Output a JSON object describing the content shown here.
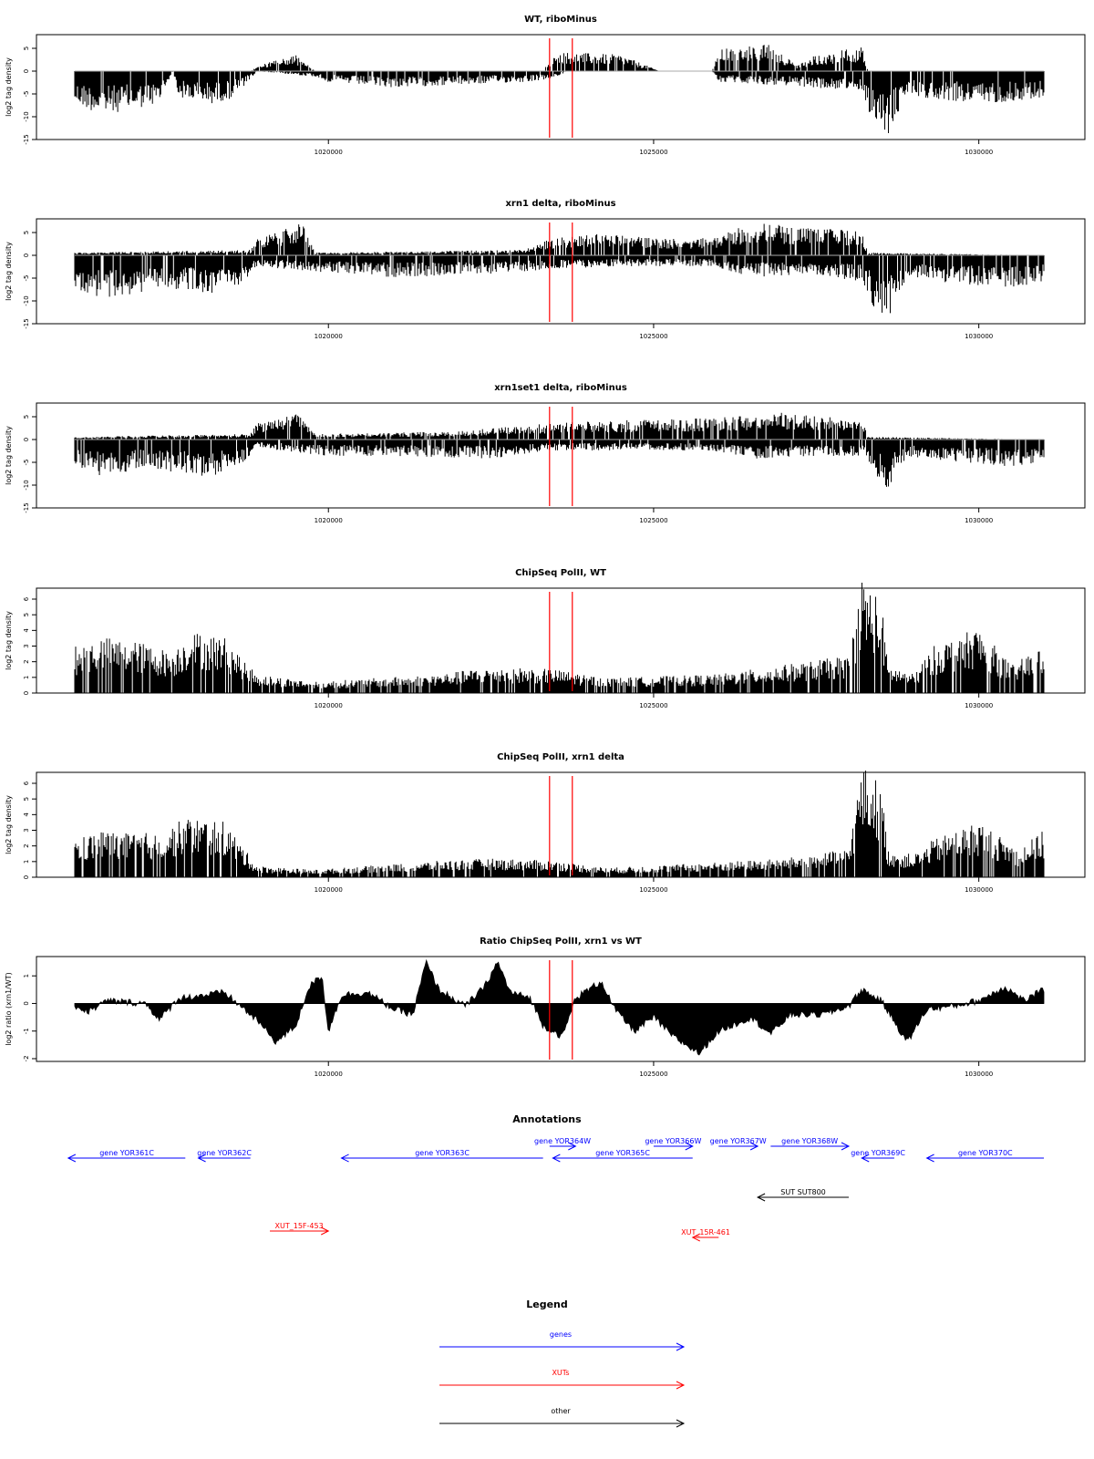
{
  "chart_data": [
    {
      "type": "bar",
      "title": "WT, riboMinus",
      "xlabel": "",
      "ylabel": "log2 tag density",
      "xlim": [
        1016000,
        1031500
      ],
      "ylim": [
        -15,
        8
      ],
      "yticks": [
        -15,
        -10,
        -5,
        0,
        5
      ],
      "xticks": [
        1020000,
        1025000,
        1030000
      ],
      "xticklabels": [
        "1020000",
        "1025000",
        "1030000"
      ],
      "marker_lines_x": [
        1023400,
        1023750
      ],
      "marker_color": "#ff0000",
      "positive_profile": [
        [
          1016100,
          0
        ],
        [
          1018800,
          0
        ],
        [
          1018900,
          1
        ],
        [
          1019500,
          3
        ],
        [
          1019800,
          0
        ],
        [
          1023300,
          0
        ],
        [
          1023400,
          2
        ],
        [
          1023600,
          3.5
        ],
        [
          1024500,
          3
        ],
        [
          1025100,
          0
        ],
        [
          1025900,
          0
        ],
        [
          1026000,
          4
        ],
        [
          1026800,
          5
        ],
        [
          1027200,
          1
        ],
        [
          1027500,
          3
        ],
        [
          1028200,
          4.5
        ],
        [
          1028300,
          0
        ],
        [
          1031000,
          0
        ]
      ],
      "negative_profile": [
        [
          1016100,
          -6
        ],
        [
          1016500,
          -8
        ],
        [
          1017000,
          -7
        ],
        [
          1017400,
          -6
        ],
        [
          1017600,
          0
        ],
        [
          1017700,
          -5
        ],
        [
          1018200,
          -6
        ],
        [
          1018500,
          -5
        ],
        [
          1018700,
          -3
        ],
        [
          1018900,
          0
        ],
        [
          1019800,
          -1
        ],
        [
          1020000,
          -2
        ],
        [
          1021000,
          -3
        ],
        [
          1022000,
          -2.5
        ],
        [
          1023000,
          -2
        ],
        [
          1023400,
          -1.5
        ],
        [
          1023700,
          0
        ],
        [
          1025900,
          0
        ],
        [
          1026000,
          -2
        ],
        [
          1027500,
          -3
        ],
        [
          1028200,
          -4
        ],
        [
          1028300,
          -8
        ],
        [
          1028600,
          -12
        ],
        [
          1028900,
          -4
        ],
        [
          1029200,
          -5
        ],
        [
          1030000,
          -6
        ],
        [
          1031000,
          -5
        ]
      ]
    },
    {
      "type": "bar",
      "title": "xrn1 delta, riboMinus",
      "xlabel": "",
      "ylabel": "log2 tag density",
      "xlim": [
        1016000,
        1031500
      ],
      "ylim": [
        -15,
        8
      ],
      "yticks": [
        -15,
        -10,
        -5,
        0,
        5
      ],
      "xticks": [
        1020000,
        1025000,
        1030000
      ],
      "xticklabels": [
        "1020000",
        "1025000",
        "1030000"
      ],
      "marker_lines_x": [
        1023400,
        1023750
      ],
      "marker_color": "#ff0000",
      "positive_profile": [
        [
          1016100,
          0.5
        ],
        [
          1018800,
          1
        ],
        [
          1018900,
          3
        ],
        [
          1019600,
          6
        ],
        [
          1019800,
          0.5
        ],
        [
          1023000,
          1
        ],
        [
          1023400,
          3
        ],
        [
          1024000,
          4
        ],
        [
          1025500,
          3
        ],
        [
          1026000,
          3.5
        ],
        [
          1026500,
          6
        ],
        [
          1027500,
          5
        ],
        [
          1028200,
          4.5
        ],
        [
          1028300,
          0.5
        ],
        [
          1031000,
          0
        ]
      ],
      "negative_profile": [
        [
          1016100,
          -6
        ],
        [
          1016500,
          -8
        ],
        [
          1017000,
          -7
        ],
        [
          1017500,
          -6
        ],
        [
          1018200,
          -7
        ],
        [
          1018700,
          -5
        ],
        [
          1018900,
          -2
        ],
        [
          1019800,
          -3
        ],
        [
          1021000,
          -4
        ],
        [
          1022500,
          -3.5
        ],
        [
          1023400,
          -2.5
        ],
        [
          1024500,
          -2
        ],
        [
          1025900,
          -2
        ],
        [
          1026500,
          -4
        ],
        [
          1027500,
          -3.5
        ],
        [
          1028200,
          -5
        ],
        [
          1028400,
          -10
        ],
        [
          1028600,
          -12
        ],
        [
          1028900,
          -4
        ],
        [
          1029500,
          -5
        ],
        [
          1030500,
          -6
        ],
        [
          1031000,
          -5
        ]
      ]
    },
    {
      "type": "bar",
      "title": "xrn1set1 delta, riboMinus",
      "xlabel": "",
      "ylabel": "log2 tag density",
      "xlim": [
        1016000,
        1031500
      ],
      "ylim": [
        -15,
        8
      ],
      "yticks": [
        -15,
        -10,
        -5,
        0,
        5
      ],
      "xticks": [
        1020000,
        1025000,
        1030000
      ],
      "xticklabels": [
        "1020000",
        "1025000",
        "1030000"
      ],
      "marker_lines_x": [
        1023400,
        1023750
      ],
      "marker_color": "#ff0000",
      "positive_profile": [
        [
          1016100,
          0.5
        ],
        [
          1018800,
          1
        ],
        [
          1018900,
          3
        ],
        [
          1019500,
          5
        ],
        [
          1019800,
          1
        ],
        [
          1022000,
          1.5
        ],
        [
          1023400,
          3
        ],
        [
          1024500,
          3.5
        ],
        [
          1026000,
          4
        ],
        [
          1026800,
          5
        ],
        [
          1028200,
          4
        ],
        [
          1028300,
          0.5
        ],
        [
          1031000,
          0
        ]
      ],
      "negative_profile": [
        [
          1016100,
          -5
        ],
        [
          1016600,
          -7
        ],
        [
          1017200,
          -5
        ],
        [
          1017600,
          -6
        ],
        [
          1018200,
          -7
        ],
        [
          1018700,
          -4
        ],
        [
          1018900,
          -1.5
        ],
        [
          1020000,
          -3
        ],
        [
          1021000,
          -3
        ],
        [
          1022500,
          -3.5
        ],
        [
          1023400,
          -2
        ],
        [
          1024500,
          -2
        ],
        [
          1025900,
          -2
        ],
        [
          1026500,
          -3.5
        ],
        [
          1027500,
          -3
        ],
        [
          1028200,
          -3
        ],
        [
          1028400,
          -7
        ],
        [
          1028600,
          -9
        ],
        [
          1028900,
          -3
        ],
        [
          1029500,
          -4
        ],
        [
          1030500,
          -5
        ],
        [
          1031000,
          -4
        ]
      ]
    },
    {
      "type": "bar",
      "title": "ChipSeq PolII, WT",
      "xlabel": "",
      "ylabel": "log2 tag density",
      "xlim": [
        1016000,
        1031500
      ],
      "ylim": [
        0,
        6.7
      ],
      "yticks": [
        0,
        1,
        2,
        3,
        4,
        5,
        6
      ],
      "xticks": [
        1020000,
        1025000,
        1030000
      ],
      "xticklabels": [
        "1020000",
        "1025000",
        "1030000"
      ],
      "marker_lines_x": [
        1023400,
        1023750
      ],
      "marker_color": "#ff0000",
      "positive_profile": [
        [
          1016100,
          2.5
        ],
        [
          1016500,
          3
        ],
        [
          1017000,
          2.8
        ],
        [
          1017600,
          2.2
        ],
        [
          1017900,
          3.3
        ],
        [
          1018400,
          3
        ],
        [
          1018900,
          1
        ],
        [
          1019800,
          0.6
        ],
        [
          1021700,
          1
        ],
        [
          1022500,
          1.4
        ],
        [
          1023400,
          1.3
        ],
        [
          1024300,
          0.8
        ],
        [
          1026000,
          1
        ],
        [
          1027000,
          1.5
        ],
        [
          1028000,
          2
        ],
        [
          1028200,
          6.2
        ],
        [
          1028500,
          5
        ],
        [
          1028600,
          1.5
        ],
        [
          1029000,
          1
        ],
        [
          1029300,
          2.5
        ],
        [
          1030000,
          3.5
        ],
        [
          1030500,
          1.5
        ],
        [
          1031000,
          2.5
        ]
      ],
      "negative_profile": []
    },
    {
      "type": "bar",
      "title": "ChipSeq PolII, xrn1 delta",
      "xlabel": "",
      "ylabel": "log2 tag density",
      "xlim": [
        1016000,
        1031500
      ],
      "ylim": [
        0,
        6.7
      ],
      "yticks": [
        0,
        1,
        2,
        3,
        4,
        5,
        6
      ],
      "xticks": [
        1020000,
        1025000,
        1030000
      ],
      "xticklabels": [
        "1020000",
        "1025000",
        "1030000"
      ],
      "marker_lines_x": [
        1023400,
        1023750
      ],
      "marker_color": "#ff0000",
      "positive_profile": [
        [
          1016100,
          2
        ],
        [
          1016500,
          2.5
        ],
        [
          1017000,
          2.3
        ],
        [
          1017500,
          2.5
        ],
        [
          1017800,
          3.2
        ],
        [
          1018400,
          3
        ],
        [
          1018900,
          0.6
        ],
        [
          1019800,
          0.4
        ],
        [
          1021800,
          0.9
        ],
        [
          1022500,
          1
        ],
        [
          1023400,
          0.9
        ],
        [
          1024300,
          0.5
        ],
        [
          1026000,
          0.8
        ],
        [
          1027000,
          1
        ],
        [
          1028000,
          1.5
        ],
        [
          1028200,
          6
        ],
        [
          1028500,
          5
        ],
        [
          1028600,
          1.5
        ],
        [
          1029000,
          1.2
        ],
        [
          1029300,
          2
        ],
        [
          1030000,
          3
        ],
        [
          1030600,
          1.5
        ],
        [
          1031000,
          2.5
        ]
      ],
      "negative_profile": []
    },
    {
      "type": "area",
      "title": "Ratio ChipSeq PolII, xrn1 vs WT",
      "xlabel": "",
      "ylabel": "log2 ratio (xrn1/WT)",
      "xlim": [
        1016000,
        1031500
      ],
      "ylim": [
        -2.1,
        1.7
      ],
      "yticks": [
        -2,
        -1,
        0,
        1
      ],
      "xticks": [
        1020000,
        1025000,
        1030000
      ],
      "xticklabels": [
        "1020000",
        "1025000",
        "1030000"
      ],
      "marker_lines_x": [
        1023400,
        1023750
      ],
      "marker_color": "#ff0000",
      "profile": [
        [
          1016100,
          -0.1
        ],
        [
          1016300,
          -0.3
        ],
        [
          1016600,
          0.1
        ],
        [
          1017200,
          0
        ],
        [
          1017400,
          -0.6
        ],
        [
          1017700,
          0.2
        ],
        [
          1018100,
          0.3
        ],
        [
          1018400,
          0.4
        ],
        [
          1018600,
          0
        ],
        [
          1018900,
          -0.6
        ],
        [
          1019200,
          -1.4
        ],
        [
          1019500,
          -0.8
        ],
        [
          1019700,
          0.6
        ],
        [
          1019900,
          1
        ],
        [
          1020000,
          -1
        ],
        [
          1020200,
          0.3
        ],
        [
          1020600,
          0.4
        ],
        [
          1021000,
          -0.2
        ],
        [
          1021300,
          -0.4
        ],
        [
          1021500,
          1.5
        ],
        [
          1021700,
          0.5
        ],
        [
          1022100,
          -0.1
        ],
        [
          1022400,
          0.6
        ],
        [
          1022600,
          1.5
        ],
        [
          1022800,
          0.4
        ],
        [
          1023100,
          0.2
        ],
        [
          1023300,
          -0.8
        ],
        [
          1023600,
          -1.2
        ],
        [
          1023800,
          0.2
        ],
        [
          1024200,
          0.8
        ],
        [
          1024400,
          -0.2
        ],
        [
          1024700,
          -1
        ],
        [
          1025000,
          -0.5
        ],
        [
          1025300,
          -1.2
        ],
        [
          1025700,
          -1.8
        ],
        [
          1026000,
          -1
        ],
        [
          1026500,
          -0.5
        ],
        [
          1026800,
          -1.1
        ],
        [
          1027100,
          -0.4
        ],
        [
          1027600,
          -0.4
        ],
        [
          1028000,
          -0.1
        ],
        [
          1028200,
          0.5
        ],
        [
          1028500,
          0.1
        ],
        [
          1028900,
          -1.4
        ],
        [
          1029200,
          -0.2
        ],
        [
          1029600,
          -0.1
        ],
        [
          1030000,
          0.1
        ],
        [
          1030400,
          0.6
        ],
        [
          1030700,
          0.1
        ],
        [
          1031000,
          0.5
        ]
      ]
    }
  ],
  "annotations": {
    "title": "Annotations",
    "genes": [
      {
        "label": "gene YOR361C",
        "start": 1016000,
        "end": 1017800,
        "strand": "-",
        "row": 2
      },
      {
        "label": "gene YOR362C",
        "start": 1018000,
        "end": 1018800,
        "strand": "-",
        "row": 2
      },
      {
        "label": "gene YOR363C",
        "start": 1020200,
        "end": 1023300,
        "strand": "-",
        "row": 2
      },
      {
        "label": "gene YOR364W",
        "start": 1023400,
        "end": 1023800,
        "strand": "+",
        "row": 1
      },
      {
        "label": "gene YOR365C",
        "start": 1023450,
        "end": 1025600,
        "strand": "-",
        "row": 2
      },
      {
        "label": "gene YOR366W",
        "start": 1025000,
        "end": 1025600,
        "strand": "+",
        "row": 1
      },
      {
        "label": "gene YOR367W",
        "start": 1026000,
        "end": 1026600,
        "strand": "+",
        "row": 1
      },
      {
        "label": "gene YOR368W",
        "start": 1026800,
        "end": 1028000,
        "strand": "+",
        "row": 1
      },
      {
        "label": "gene YOR369C",
        "start": 1028200,
        "end": 1028700,
        "strand": "-",
        "row": 2
      },
      {
        "label": "gene YOR370C",
        "start": 1029200,
        "end": 1031000,
        "strand": "-",
        "row": 2
      }
    ],
    "other": [
      {
        "label": "SUT SUT800",
        "start": 1026600,
        "end": 1028000,
        "strand": "-",
        "row": 3
      }
    ],
    "xuts": [
      {
        "label": "XUT_15F-453",
        "start": 1019100,
        "end": 1020000,
        "strand": "+",
        "row": 4
      },
      {
        "label": "XUT_15R-461",
        "start": 1025600,
        "end": 1026000,
        "strand": "-",
        "row": 5
      }
    ]
  },
  "legend": {
    "title": "Legend",
    "items": [
      {
        "label": "genes",
        "color": "#0000ff"
      },
      {
        "label": "XUTs",
        "color": "#ff0000"
      },
      {
        "label": "other",
        "color": "#000000"
      }
    ]
  },
  "colors": {
    "signal": "#000000",
    "gene": "#0000ff",
    "xut": "#ff0000",
    "other": "#000000",
    "marker": "#ff0000"
  }
}
